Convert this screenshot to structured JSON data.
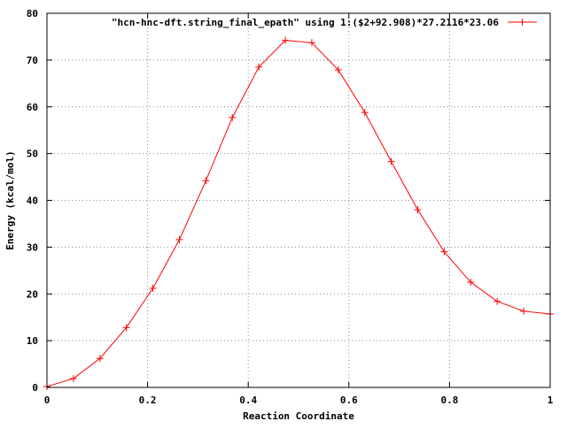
{
  "chart_data": {
    "type": "line",
    "title": "",
    "xlabel": "Reaction Coordinate",
    "ylabel": "Energy (kcal/mol)",
    "xlim": [
      0,
      1
    ],
    "ylim": [
      0,
      80
    ],
    "x_ticks": [
      "0",
      "0.2",
      "0.4",
      "0.6",
      "0.8",
      "1"
    ],
    "y_ticks": [
      "0",
      "10",
      "20",
      "30",
      "40",
      "50",
      "60",
      "70",
      "80"
    ],
    "grid": true,
    "legend_position": "top-right",
    "series": [
      {
        "name": "\"hcn-hnc-dft.string_final_epath\" using 1:($2+92.908)*27.2116*23.06",
        "color": "#ff0000",
        "marker": "plus",
        "x": [
          0,
          0.0526,
          0.1053,
          0.1579,
          0.2105,
          0.2632,
          0.3158,
          0.3684,
          0.4211,
          0.4737,
          0.5263,
          0.5789,
          0.6316,
          0.6842,
          0.7368,
          0.7895,
          0.8421,
          0.8947,
          0.9474,
          1
        ],
        "y": [
          0.2,
          1.9,
          6.2,
          12.8,
          21.2,
          31.6,
          44.2,
          57.7,
          68.5,
          74.2,
          73.7,
          67.9,
          58.8,
          48.3,
          38.0,
          29.0,
          22.5,
          18.4,
          16.3,
          15.7
        ]
      }
    ]
  }
}
